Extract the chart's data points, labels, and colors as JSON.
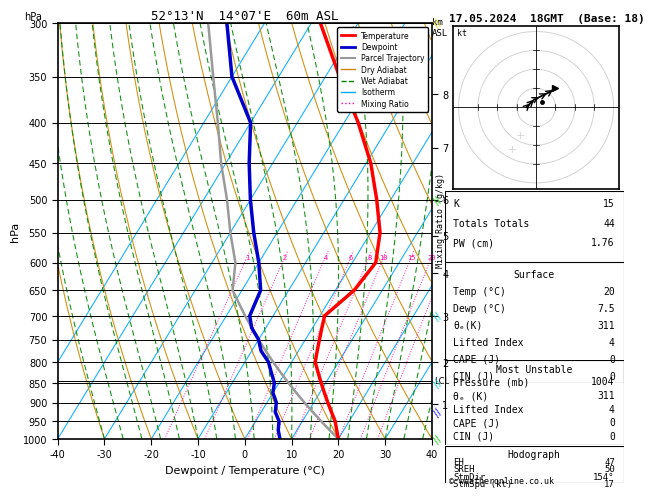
{
  "title_left": "52°13'N  14°07'E  60m ASL",
  "title_right": "17.05.2024  18GMT  (Base: 18)",
  "xlabel": "Dewpoint / Temperature (°C)",
  "pressure_ticks": [
    300,
    350,
    400,
    450,
    500,
    550,
    600,
    650,
    700,
    750,
    800,
    850,
    900,
    950,
    1000
  ],
  "km_ticks": [
    8,
    7,
    6,
    5,
    4,
    3,
    2,
    1
  ],
  "km_pressures": [
    368,
    430,
    500,
    555,
    618,
    701,
    800,
    905
  ],
  "lcl_pressure": 845,
  "temp_profile_p": [
    1000,
    975,
    950,
    925,
    900,
    875,
    850,
    825,
    800,
    775,
    750,
    725,
    700,
    650,
    600,
    550,
    500,
    450,
    400,
    350,
    300
  ],
  "temp_profile_t": [
    20,
    18.5,
    17,
    15,
    13,
    11,
    9,
    7,
    5,
    4,
    3,
    2,
    1,
    4,
    5,
    2,
    -3,
    -9,
    -17,
    -27,
    -38
  ],
  "dewp_profile_p": [
    1000,
    975,
    950,
    925,
    900,
    875,
    850,
    825,
    800,
    775,
    750,
    725,
    700,
    650,
    600,
    550,
    500,
    450,
    400,
    350,
    300
  ],
  "dewp_profile_t": [
    7.5,
    6,
    5,
    3,
    2,
    0,
    -1,
    -3,
    -5,
    -8,
    -10,
    -13,
    -15,
    -16,
    -20,
    -25,
    -30,
    -35,
    -40,
    -50,
    -58
  ],
  "parcel_p": [
    1000,
    975,
    950,
    925,
    900,
    875,
    850,
    825,
    800,
    775,
    750,
    700,
    650,
    600,
    550,
    500,
    450,
    400,
    350,
    300
  ],
  "parcel_t": [
    20,
    17,
    14,
    11,
    8,
    5,
    2,
    -1,
    -4,
    -7,
    -10,
    -16,
    -22,
    -25,
    -30,
    -35,
    -41,
    -47,
    -54,
    -62
  ],
  "colors": {
    "temperature": "#ff0000",
    "dewpoint": "#0000cc",
    "parcel": "#999999",
    "dry_adiabat": "#cc8800",
    "wet_adiabat": "#008800",
    "isotherm": "#00aaff",
    "mixing_ratio": "#ff00aa",
    "background": "#ffffff",
    "grid": "#000000"
  },
  "stats": {
    "K": 15,
    "Totals_Totals": 44,
    "PW_cm": 1.76,
    "Surface_Temp": 20,
    "Surface_Dewp": 7.5,
    "Surface_ThetaE": 311,
    "Surface_LI": 4,
    "Surface_CAPE": 0,
    "Surface_CIN": 0,
    "MU_Pressure": 1004,
    "MU_ThetaE": 311,
    "MU_LI": 4,
    "MU_CAPE": 0,
    "MU_CIN": 0,
    "Hodo_EH": 47,
    "Hodo_SREH": 50,
    "StmDir": 154,
    "StmSpd": 17
  }
}
